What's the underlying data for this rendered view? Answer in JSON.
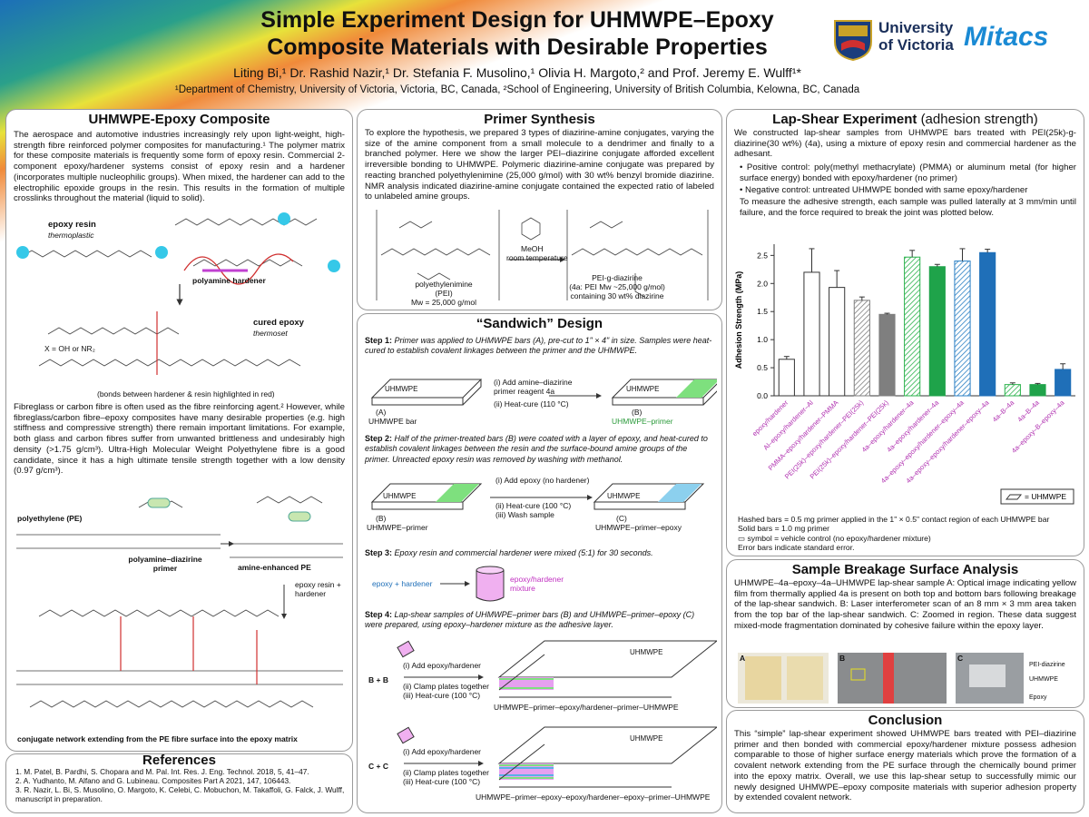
{
  "header": {
    "title": [
      "Simple Experiment Design for UHMWPE–Epoxy",
      "Composite Materials with Desirable Properties"
    ],
    "authors": "Liting Bi,¹ Dr. Rashid Nazir,¹ Dr. Stefania F. Musolino,¹ Olivia H. Margoto,² and Prof. Jeremy E. Wulff¹*",
    "affiliations": "¹Department of Chemistry, University of Victoria, Victoria, BC, Canada, ²School of Engineering, University of British Columbia, Kelowna, BC, Canada",
    "logos": [
      "University",
      "of Victoria",
      "Mitacs"
    ]
  },
  "composite": {
    "heading": "UHMWPE-Epoxy Composite",
    "intro": "The aerospace and automotive industries increasingly rely upon light-weight, high-strength fibre reinforced polymer composites for manufacturing.¹ The polymer matrix for these composite materials is frequently some form of epoxy resin. Commercial 2-component epoxy/hardener systems consist of epoxy resin and a hardener (incorporates multiple nucleophilic groups). When mixed, the hardener can add to the electrophilic epoxide groups in the resin. This results in the formation of multiple crosslinks throughout the material (liquid to solid).",
    "labels": [
      "epoxy resin",
      "thermoplastic",
      "polyamine hardener",
      "cured epoxy",
      "thermoset",
      "X = OH or NR₂",
      "(bonds between hardener & resin highlighted in red)"
    ],
    "body": "Fibreglass or carbon fibre is often used as the fibre reinforcing agent.² However, while fibreglass/carbon fibre–epoxy composites have many desirable properties (e.g. high stiffness and compressive strength) there remain important limitations. For example, both glass and carbon fibres suffer from unwanted brittleness and undesirably high density (>1.75 g/cm³). Ultra-High Molecular Weight Polyethylene fibre is a good candidate, since it has a high ultimate tensile strength together with a low density (0.97 g/cm³).",
    "labels2": [
      "polyethylene (PE)",
      "polyamine–diazirine primer",
      "amine-enhanced PE",
      "epoxy resin + hardener",
      "conjugate network extending from the PE fibre surface into the epoxy matrix"
    ]
  },
  "references": {
    "heading": "References",
    "items": [
      "1. M. Patel, B. Pardhi, S. Chopara and M. Pal. Int. Res. J. Eng. Technol. 2018, 5, 41–47.",
      "2. A. Yudhanto, M. Alfano and G. Lubineau. Composites Part A 2021, 147, 106443.",
      "3. R. Nazir, L. Bi, S. Musolino, O. Margoto, K. Celebi, C. Mobuchon, M. Takaffoli, G. Falck, J. Wulff, manuscript in preparation."
    ]
  },
  "primer": {
    "heading": "Primer Synthesis",
    "text": "To explore the hypothesis, we prepared 3 types of diazirine-amine conjugates, varying the size of the amine component from a small molecule to a dendrimer and finally to a branched polymer. Here we show the larger PEI–diazirine conjugate afforded excellent irreversible bonding to UHMWPE. Polymeric diazirine-amine conjugate was prepared by reacting branched polyethylenimine (25,000 g/mol) with 30 wt% benzyl bromide diazirine. NMR analysis indicated diazirine-amine conjugate contained the expected ratio of labeled to unlabeled amine groups.",
    "labels": [
      "MeOH",
      "room temperature",
      "polyethylenimine",
      "(PEI)",
      "Mw = 25,000 g/mol",
      "PEI-g-diazirine",
      "(4a: PEI Mw ~25,000 g/mol)",
      "containing 30 wt% diazirine"
    ]
  },
  "sandwich": {
    "heading": "“Sandwich” Design",
    "steps": [
      {
        "label": "Step 1:",
        "text": "Primer was applied to UHMWPE bars (A), pre-cut to 1\" × 4\" in size. Samples were heat-cured to establish covalent linkages between the primer and the UHMWPE.",
        "labels": [
          "UHMWPE",
          "(A)",
          "UHMWPE bar",
          "(i) Add amine–diazirine primer reagent 4a",
          "(ii) Heat-cure (110 °C)",
          "UHMWPE",
          "(B)",
          "UHMWPE–primer"
        ]
      },
      {
        "label": "Step 2:",
        "text": "Half of the primer-treated bars (B) were coated with a layer of epoxy, and heat-cured to establish covalent linkages between the resin and the surface-bound amine groups of the primer. Unreacted epoxy resin was removed by washing with methanol.",
        "labels": [
          "UHMWPE",
          "(B)",
          "UHMWPE–primer",
          "(i) Add epoxy (no hardener)",
          "(ii) Heat-cure (100 °C)",
          "(iii) Wash sample",
          "UHMWPE",
          "(C)",
          "UHMWPE–primer–epoxy"
        ]
      },
      {
        "label": "Step 3:",
        "text": "Epoxy resin and commercial hardener were mixed (5:1) for 30 seconds.",
        "labels": [
          "epoxy + hardener",
          "epoxy/hardener mixture"
        ]
      },
      {
        "label": "Step 4:",
        "text": "Lap-shear samples of UHMWPE–primer bars (B) and UHMWPE–primer–epoxy (C) were prepared, using epoxy–hardener mixture as the adhesive layer.",
        "labels": [
          "B + B",
          "(i) Add epoxy/hardener",
          "(ii) Clamp plates together",
          "(iii) Heat-cure (100 °C)",
          "UHMWPE",
          "UHMWPE–primer–epoxy/hardener–primer–UHMWPE",
          "C + C",
          "(i) Add epoxy/hardener",
          "(ii) Clamp plates together",
          "(iii) Heat-cure (100 °C)",
          "UHMWPE",
          "UHMWPE–primer–epoxy–epoxy/hardener–epoxy–primer–UHMWPE"
        ]
      }
    ]
  },
  "lap_shear": {
    "heading": "Lap-Shear Experiment",
    "subheading": "(adhesion strength)",
    "intro": "We constructed lap-shear samples from UHMWPE bars treated with PEI(25k)-g-diazirine(30 wt%) (4a), using a mixture of epoxy resin and commercial hardener as the adhesant.",
    "bullets": [
      "• Positive control: poly(methyl methacrylate) (PMMA) or aluminum metal (for higher surface energy) bonded with epoxy/hardener (no primer)",
      "• Negative control: untreated UHMWPE bonded with same epoxy/hardener"
    ],
    "after": "To measure the adhesive strength, each sample was pulled laterally at 3 mm/min until failure, and the force required to break the joint was plotted below.",
    "notes": [
      "Hashed bars = 0.5 mg primer applied in the 1\" × 0.5\" contact region of each UHMWPE bar",
      "Solid bars = 1.0 mg primer",
      "▭ symbol = vehicle control (no epoxy/hardener mixture)",
      "Error bars indicate standard error."
    ]
  },
  "breakage": {
    "heading": "Sample Breakage Surface Analysis",
    "text": "UHMWPE–4a–epoxy–4a–UHMWPE lap-shear sample A: Optical image indicating yellow film from thermally applied 4a is present on both top and bottom bars following breakage of the lap-shear sandwich. B: Laser interferometer scan of an 8 mm × 3 mm area taken from the top bar of the lap-shear sandwich. C: Zoomed in region. These data suggest mixed-mode fragmentation dominated by cohesive failure within the epoxy layer.",
    "panels": [
      "A",
      "B",
      "C"
    ],
    "annotations": [
      "PEI-diazirine",
      "UHMWPE",
      "Epoxy"
    ]
  },
  "conclusion": {
    "heading": "Conclusion",
    "text": "This “simple” lap-shear experiment showed UHMWPE bars treated with PEI–diazirine primer and then bonded with commercial epoxy/hardener mixture possess adhesion comparable to those of higher surface energy materials which prove the formation of a covalent network extending from the PE surface through the chemically bound primer into the epoxy matrix. Overall, we use this lap-shear setup to successfully mimic our newly designed UHMWPE–epoxy composite materials with superior adhesion property by extended covalent network."
  },
  "chart_data": {
    "type": "bar",
    "y_label": "Adhesion Strength (MPa)",
    "categories": [
      "epoxy/hardener",
      "Al–epoxy/hardener–Al",
      "PMMA–epoxy/hardener–PMMA",
      "PEI(25k)–epoxy/hardener–PEI(25k)",
      "PEI(25k)–epoxy/hardener–PEI(25k)",
      "4a–epoxy/hardener–4a",
      "4a–epoxy/hardener–4a",
      "4a–epoxy–epoxy/hardener–epoxy–4a",
      "4a–epoxy–epoxy/hardener–epoxy–4a",
      "4a–B–4a",
      "4a–B–4a",
      "4a–epoxy–B–epoxy–4a"
    ],
    "values": [
      0.65,
      2.2,
      1.93,
      1.7,
      1.45,
      2.47,
      2.3,
      2.4,
      2.55,
      0.2,
      0.2,
      0.47
    ],
    "errors": [
      0.05,
      0.42,
      0.3,
      0.06,
      0.02,
      0.12,
      0.04,
      0.22,
      0.06,
      0.03,
      0.02,
      0.1
    ],
    "colors": [
      "#ffffff",
      "#ffffff",
      "#ffffff",
      "#7f7f7f",
      "#7f7f7f",
      "#2bb24c",
      "#1fa34a",
      "#2a7fc4",
      "#1f6fb8",
      "#2bb24c",
      "#1fa34a",
      "#1f6fb8"
    ],
    "hatched": [
      false,
      false,
      false,
      true,
      false,
      true,
      false,
      true,
      false,
      true,
      false,
      false
    ],
    "ylim": [
      0,
      2.7
    ],
    "yticks": [
      {
        "value": 0,
        "label": "0.0"
      },
      {
        "value": 0.5,
        "label": "0.5"
      },
      {
        "value": 1,
        "label": "1.0"
      },
      {
        "value": 1.5,
        "label": "1.5"
      },
      {
        "value": 2,
        "label": "2.0"
      },
      {
        "value": 2.5,
        "label": "2.5"
      }
    ],
    "legend_label": "= UHMWPE",
    "legend_corner": "lower right",
    "grid": false
  }
}
